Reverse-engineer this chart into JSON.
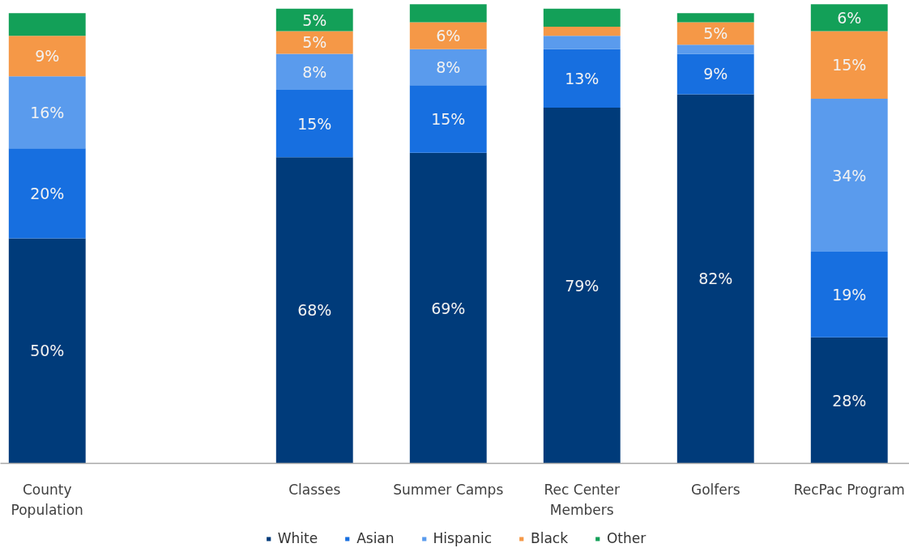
{
  "chart_data": {
    "type": "bar",
    "stacked": true,
    "legend": "bottom",
    "categories": [
      "County Population",
      null,
      "Classes",
      "Summer Camps",
      "Rec Center Members",
      "Golfers",
      "RecPac Program"
    ],
    "series": [
      {
        "name": "White",
        "color": "#003b7a",
        "values": [
          50,
          null,
          68,
          69,
          79,
          82,
          28
        ],
        "value_labels": [
          "50%",
          null,
          "68%",
          "69%",
          "79%",
          "82%",
          "28%"
        ]
      },
      {
        "name": "Asian",
        "color": "#176fe0",
        "values": [
          20,
          null,
          15,
          15,
          13,
          9,
          19
        ],
        "value_labels": [
          "20%",
          null,
          "15%",
          "15%",
          "13%",
          "9%",
          "19%"
        ]
      },
      {
        "name": "Hispanic",
        "color": "#5a9bed",
        "values": [
          16,
          null,
          8,
          8,
          3,
          2,
          34
        ],
        "value_labels": [
          "16%",
          null,
          "8%",
          "8%",
          null,
          null,
          "34%"
        ]
      },
      {
        "name": "Black",
        "color": "#f59847",
        "values": [
          9,
          null,
          5,
          6,
          2,
          5,
          15
        ],
        "value_labels": [
          "9%",
          null,
          "5%",
          "6%",
          null,
          "5%",
          "15%"
        ]
      },
      {
        "name": "Other",
        "color": "#13a058",
        "values": [
          5,
          null,
          5,
          4,
          4,
          2,
          6
        ],
        "value_labels": [
          null,
          null,
          "5%",
          null,
          null,
          null,
          "6%"
        ]
      }
    ]
  }
}
